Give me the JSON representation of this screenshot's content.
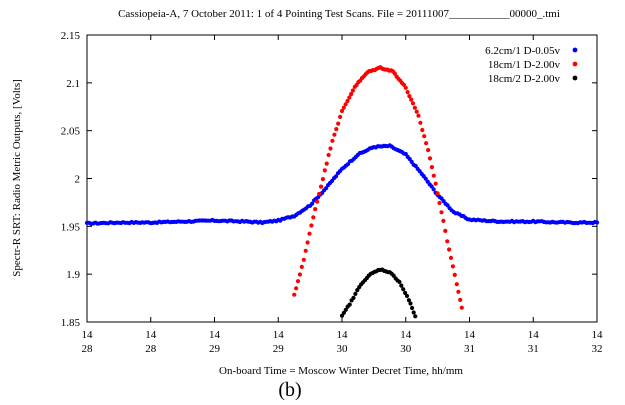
{
  "chart_data": {
    "type": "scatter",
    "title": "Cassiopeia-A, 7 October 2011: 1 of 4 Pointing Test Scans. File = 20111007___________00000_.tmi",
    "xlabel": "On-board Time =  Moscow Winter Decret Time,  hh/mm",
    "ylabel": "Spectr-R SRT:  Radio Metric Outputs,  [Volts]",
    "panel_label": "(b)",
    "ylim": [
      1.85,
      2.15
    ],
    "xlim": [
      0,
      8
    ],
    "y_ticks": [
      1.85,
      1.9,
      1.95,
      2,
      2.05,
      2.1,
      2.15
    ],
    "y_tick_labels": [
      "1.85",
      "1.9",
      "1.95",
      "2",
      "2.05",
      "2.1",
      "2.15"
    ],
    "x_ticks": [
      0,
      1,
      2,
      3,
      4,
      5,
      6,
      7,
      8
    ],
    "x_tick_labels": [
      {
        "top": "14",
        "bottom": "28"
      },
      {
        "top": "14",
        "bottom": "28"
      },
      {
        "top": "14",
        "bottom": "29"
      },
      {
        "top": "14",
        "bottom": "29"
      },
      {
        "top": "14",
        "bottom": "30"
      },
      {
        "top": "14",
        "bottom": "30"
      },
      {
        "top": "14",
        "bottom": "31"
      },
      {
        "top": "14",
        "bottom": "31"
      },
      {
        "top": "14",
        "bottom": "32"
      }
    ],
    "legend_position": "top-right",
    "series": [
      {
        "name": "6.2cm/1 D-0.05v",
        "color": "#0000ff",
        "points": [
          [
            0,
            1.953
          ],
          [
            0.5,
            1.954
          ],
          [
            1,
            1.954
          ],
          [
            1.5,
            1.955
          ],
          [
            2,
            1.956
          ],
          [
            2.5,
            1.955
          ],
          [
            2.75,
            1.954
          ],
          [
            3,
            1.956
          ],
          [
            3.25,
            1.961
          ],
          [
            3.5,
            1.972
          ],
          [
            3.75,
            1.99
          ],
          [
            4,
            2.01
          ],
          [
            4.25,
            2.025
          ],
          [
            4.5,
            2.033
          ],
          [
            4.75,
            2.034
          ],
          [
            5,
            2.025
          ],
          [
            5.25,
            2.005
          ],
          [
            5.5,
            1.983
          ],
          [
            5.75,
            1.965
          ],
          [
            6,
            1.957
          ],
          [
            6.5,
            1.955
          ],
          [
            7,
            1.955
          ],
          [
            7.5,
            1.954
          ],
          [
            8,
            1.954
          ]
        ]
      },
      {
        "name": "18cm/1 D-2.00v",
        "color": "#ff0000",
        "points": [
          [
            3.25,
            1.878
          ],
          [
            3.4,
            1.915
          ],
          [
            3.55,
            1.96
          ],
          [
            3.7,
            2.0
          ],
          [
            3.85,
            2.04
          ],
          [
            4,
            2.07
          ],
          [
            4.2,
            2.096
          ],
          [
            4.4,
            2.111
          ],
          [
            4.6,
            2.116
          ],
          [
            4.8,
            2.112
          ],
          [
            5,
            2.095
          ],
          [
            5.2,
            2.065
          ],
          [
            5.35,
            2.03
          ],
          [
            5.5,
            1.985
          ],
          [
            5.65,
            1.935
          ],
          [
            5.8,
            1.89
          ],
          [
            5.88,
            1.865
          ]
        ]
      },
      {
        "name": "18cm/2 D-2.00v",
        "color": "#000000",
        "points": [
          [
            4.0,
            1.856
          ],
          [
            4.15,
            1.872
          ],
          [
            4.3,
            1.89
          ],
          [
            4.45,
            1.9
          ],
          [
            4.6,
            1.905
          ],
          [
            4.75,
            1.902
          ],
          [
            4.9,
            1.892
          ],
          [
            5.05,
            1.873
          ],
          [
            5.15,
            1.856
          ]
        ]
      }
    ]
  }
}
